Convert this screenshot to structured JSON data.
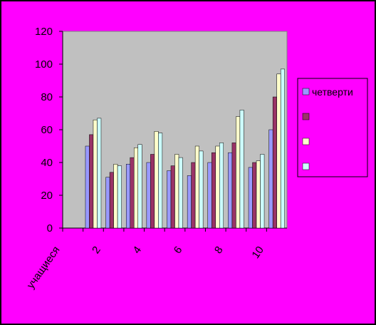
{
  "chart_data": {
    "type": "bar",
    "categories": [
      "учащиеся",
      null,
      "2",
      null,
      "4",
      null,
      "6",
      null,
      "8",
      null,
      "10"
    ],
    "series": [
      {
        "name": "четверти",
        "color": "#9999ff",
        "values": [
          null,
          50,
          31,
          39,
          40,
          35,
          32,
          40,
          46,
          37,
          60
        ]
      },
      {
        "name": null,
        "color": "#993366",
        "values": [
          null,
          57,
          34,
          43,
          45,
          38,
          40,
          46,
          52,
          40,
          80
        ]
      },
      {
        "name": null,
        "color": "#ffffcc",
        "values": [
          null,
          66,
          39,
          49,
          59,
          45,
          50,
          50,
          68,
          41,
          94
        ]
      },
      {
        "name": null,
        "color": "#ccffff",
        "values": [
          null,
          67,
          38,
          51,
          58,
          43,
          47,
          52,
          72,
          45,
          97
        ]
      }
    ],
    "ylim": [
      0,
      120
    ],
    "yticks": [
      0,
      20,
      40,
      60,
      80,
      100,
      120
    ],
    "legend": "right"
  }
}
